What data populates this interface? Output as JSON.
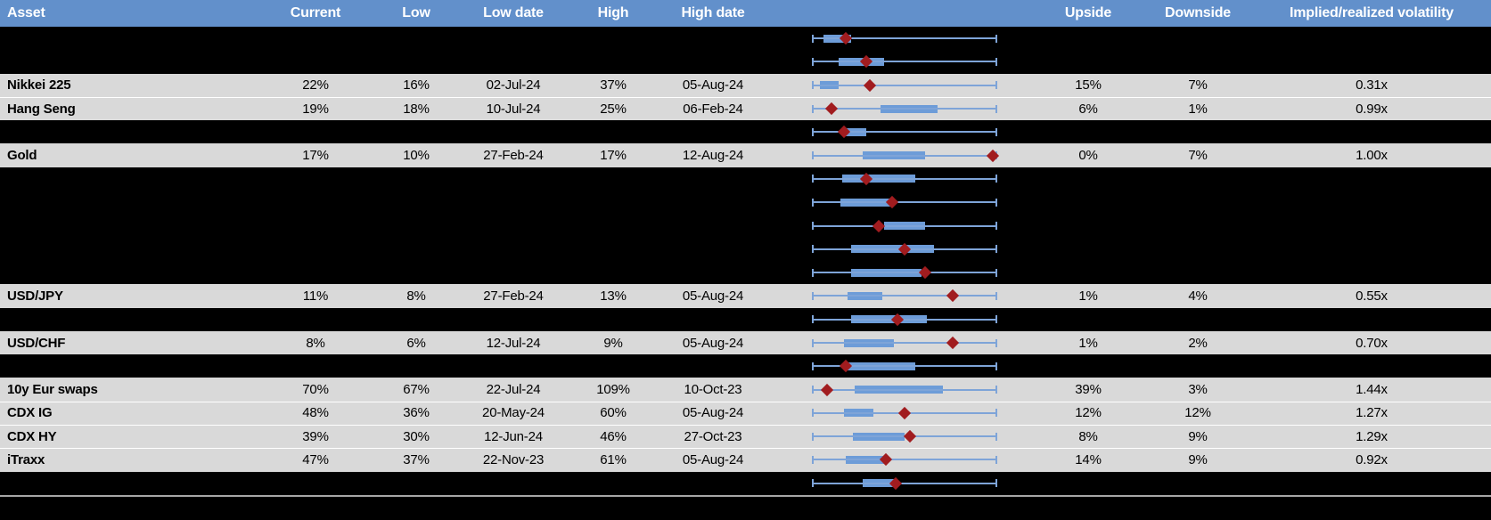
{
  "colors": {
    "header_blue": "#6290CB",
    "box_blue": "#6D9CD8",
    "whisker_blue": "#7EA4D8",
    "marker_red": "#A11C1F",
    "row_gray": "#D9D9D9",
    "row_black": "#000000",
    "divider_gray": "#A6A6A6",
    "header_text": "#FFFFFF"
  },
  "header": {
    "asset": "Asset",
    "current": "Current",
    "low": "Low",
    "low_date": "Low date",
    "high": "High",
    "high_date": "High date",
    "upside": "Upside",
    "downside": "Downside",
    "implied_realized": "Implied/realized volatility"
  },
  "chart_data": {
    "type": "table",
    "description_of_chart_column": "Each row contains a horizontal box-and-whisker plot normalized to the asset's low-high volatility range: whiskers span the full range (0 = Low, 1 = High), the blue box is the interquartile range, the dark-red diamond marks the current level. box = [q1_fraction, q3_fraction], marker = current_fraction.",
    "legend_position": "none",
    "grid": false,
    "rows": [
      {
        "bg": "black",
        "box": [
          0.06,
          0.21
        ],
        "marker": 0.18
      },
      {
        "bg": "black",
        "box": [
          0.14,
          0.39
        ],
        "marker": 0.29
      },
      {
        "bg": "gray",
        "asset": "Nikkei 225",
        "current": "22%",
        "low": "16%",
        "low_date": "02-Jul-24",
        "high": "37%",
        "high_date": "05-Aug-24",
        "upside": "15%",
        "downside": "7%",
        "implied_realized": "0.31x",
        "box": [
          0.04,
          0.14
        ],
        "marker": 0.31
      },
      {
        "bg": "gray",
        "asset": "Hang Seng",
        "current": "19%",
        "low": "18%",
        "low_date": "10-Jul-24",
        "high": "25%",
        "high_date": "06-Feb-24",
        "upside": "6%",
        "downside": "1%",
        "implied_realized": "0.99x",
        "box": [
          0.37,
          0.68
        ],
        "marker": 0.1
      },
      {
        "bg": "black",
        "box": [
          0.18,
          0.29
        ],
        "marker": 0.17
      },
      {
        "bg": "gray",
        "asset": "Gold",
        "current": "17%",
        "low": "10%",
        "low_date": "27-Feb-24",
        "high": "17%",
        "high_date": "12-Aug-24",
        "upside": "0%",
        "downside": "7%",
        "implied_realized": "1.00x",
        "box": [
          0.27,
          0.61
        ],
        "marker": 0.98
      },
      {
        "bg": "black",
        "box": [
          0.16,
          0.56
        ],
        "marker": 0.29
      },
      {
        "bg": "black",
        "box": [
          0.15,
          0.44
        ],
        "marker": 0.43
      },
      {
        "bg": "black",
        "box": [
          0.39,
          0.61
        ],
        "marker": 0.36
      },
      {
        "bg": "black",
        "box": [
          0.21,
          0.66
        ],
        "marker": 0.5
      },
      {
        "bg": "black",
        "box": [
          0.21,
          0.59
        ],
        "marker": 0.61
      },
      {
        "bg": "gray",
        "asset": "USD/JPY",
        "current": "11%",
        "low": "8%",
        "low_date": "27-Feb-24",
        "high": "13%",
        "high_date": "05-Aug-24",
        "upside": "1%",
        "downside": "4%",
        "implied_realized": "0.55x",
        "box": [
          0.19,
          0.38
        ],
        "marker": 0.76
      },
      {
        "bg": "black",
        "box": [
          0.21,
          0.62
        ],
        "marker": 0.46
      },
      {
        "bg": "gray",
        "asset": "USD/CHF",
        "current": "8%",
        "low": "6%",
        "low_date": "12-Jul-24",
        "high": "9%",
        "high_date": "05-Aug-24",
        "upside": "1%",
        "downside": "2%",
        "implied_realized": "0.70x",
        "box": [
          0.17,
          0.44
        ],
        "marker": 0.76
      },
      {
        "bg": "black",
        "box": [
          0.18,
          0.56
        ],
        "marker": 0.18
      },
      {
        "bg": "gray",
        "asset": "10y Eur swaps",
        "current": "70%",
        "low": "67%",
        "low_date": "22-Jul-24",
        "high": "109%",
        "high_date": "10-Oct-23",
        "upside": "39%",
        "downside": "3%",
        "implied_realized": "1.44x",
        "box": [
          0.23,
          0.71
        ],
        "marker": 0.08
      },
      {
        "bg": "gray",
        "asset": "CDX IG",
        "current": "48%",
        "low": "36%",
        "low_date": "20-May-24",
        "high": "60%",
        "high_date": "05-Aug-24",
        "upside": "12%",
        "downside": "12%",
        "implied_realized": "1.27x",
        "box": [
          0.17,
          0.33
        ],
        "marker": 0.5
      },
      {
        "bg": "gray",
        "asset": "CDX HY",
        "current": "39%",
        "low": "30%",
        "low_date": "12-Jun-24",
        "high": "46%",
        "high_date": "27-Oct-23",
        "upside": "8%",
        "downside": "9%",
        "implied_realized": "1.29x",
        "box": [
          0.22,
          0.5
        ],
        "marker": 0.53
      },
      {
        "bg": "gray",
        "asset": "iTraxx",
        "current": "47%",
        "low": "37%",
        "low_date": "22-Nov-23",
        "high": "61%",
        "high_date": "05-Aug-24",
        "upside": "14%",
        "downside": "9%",
        "implied_realized": "0.92x",
        "box": [
          0.18,
          0.4
        ],
        "marker": 0.4
      },
      {
        "bg": "black",
        "box": [
          0.27,
          0.44
        ],
        "marker": 0.45
      }
    ]
  }
}
